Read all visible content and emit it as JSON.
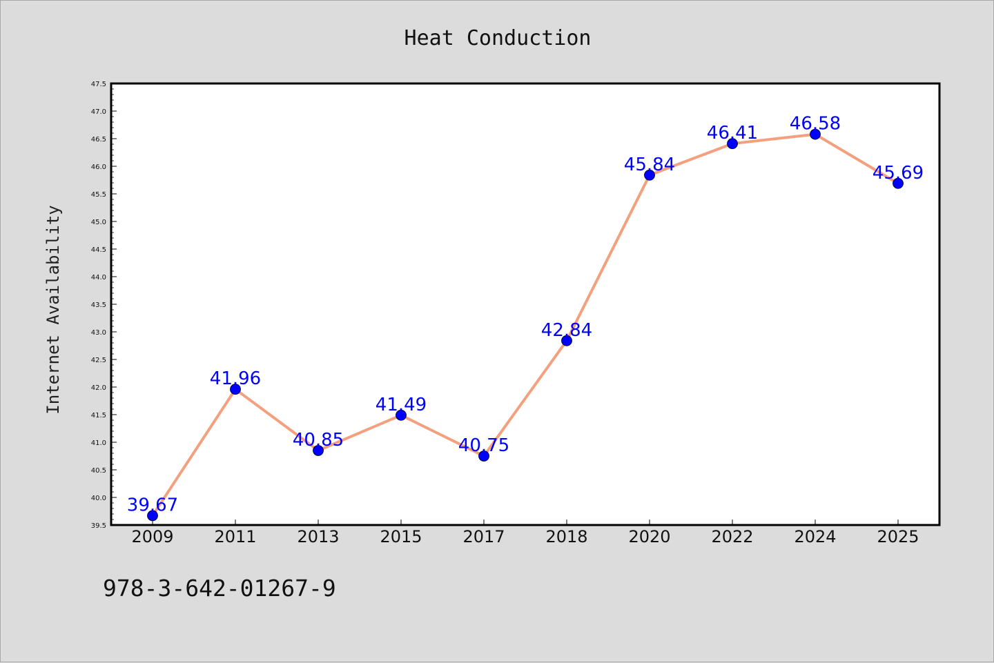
{
  "chart_data": {
    "type": "line",
    "title": "Heat Conduction",
    "xlabel": "",
    "ylabel": "Internet Availability",
    "categories": [
      "2009",
      "2011",
      "2013",
      "2015",
      "2017",
      "2018",
      "2020",
      "2022",
      "2024",
      "2025"
    ],
    "series": [
      {
        "values": [
          39.67,
          41.96,
          40.85,
          41.49,
          40.75,
          42.84,
          45.84,
          46.41,
          46.58,
          45.69
        ],
        "labels": [
          "39.67",
          "41.96",
          "40.85",
          "41.49",
          "40.75",
          "42.84",
          "45.84",
          "46.41",
          "46.58",
          "45.69"
        ]
      }
    ],
    "ylim": [
      39.5,
      47.5
    ],
    "yticks": [
      "39.5",
      "40.0",
      "40.5",
      "41.0",
      "41.5",
      "42.0",
      "42.5",
      "43.0",
      "43.5",
      "44.0",
      "44.5",
      "45.0",
      "45.5",
      "46.0",
      "46.5",
      "47.0",
      "47.5"
    ],
    "grid": false,
    "legend": "none",
    "colors": {
      "line": "#f4a07e",
      "marker": "#0000ff",
      "data_label": "#0000ff",
      "figure_background": "#dcdcdc",
      "plot_background": "#ffffff"
    }
  },
  "footer": {
    "isbn": "978-3-642-01267-9"
  }
}
